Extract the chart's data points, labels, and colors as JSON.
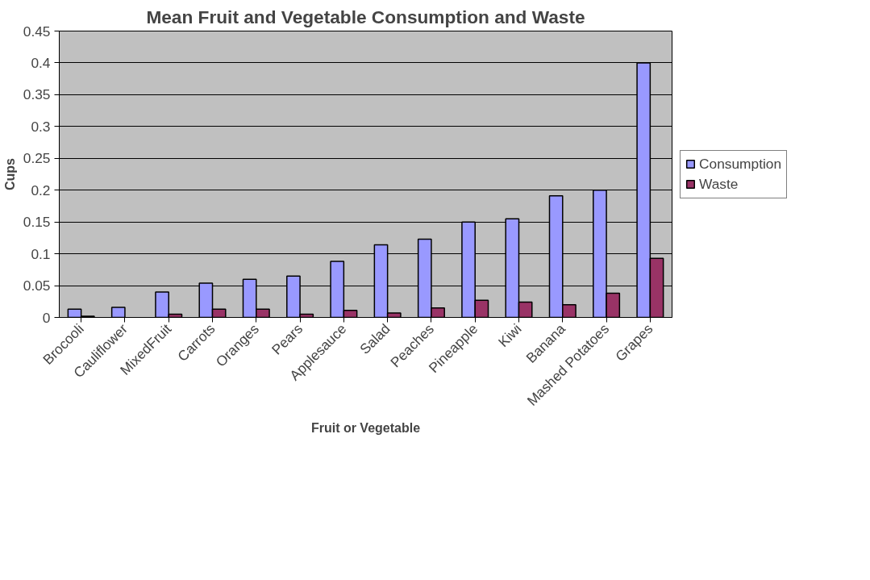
{
  "chart_data": {
    "type": "bar",
    "title": "Mean Fruit and Vegetable Consumption and Waste",
    "xlabel": "Fruit or Vegetable",
    "ylabel": "Cups",
    "categories": [
      "Brocooli",
      "Cauliflower",
      "MixedFruit",
      "Carrots",
      "Oranges",
      "Pears",
      "Applesauce",
      "Salad",
      "Peaches",
      "Pineapple",
      "Kiwi",
      "Banana",
      "Mashed Potatoes",
      "Grapes"
    ],
    "series": [
      {
        "name": "Consumption",
        "color": "#9999ff",
        "values": [
          0.013,
          0.016,
          0.04,
          0.054,
          0.06,
          0.065,
          0.088,
          0.114,
          0.123,
          0.15,
          0.155,
          0.191,
          0.2,
          0.4
        ]
      },
      {
        "name": "Waste",
        "color": "#993366",
        "values": [
          0.002,
          null,
          0.005,
          0.013,
          0.013,
          0.005,
          0.011,
          0.007,
          0.015,
          0.027,
          0.024,
          0.02,
          0.038,
          0.093
        ]
      }
    ],
    "ylim": [
      0,
      0.45
    ],
    "yticks": [
      0,
      0.05,
      0.1,
      0.15,
      0.2,
      0.25,
      0.3,
      0.35,
      0.4,
      0.45
    ],
    "grid": "y",
    "legend": "right"
  }
}
